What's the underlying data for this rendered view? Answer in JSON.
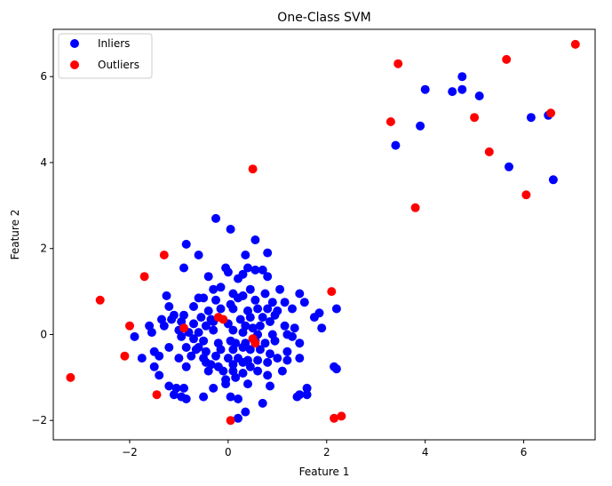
{
  "chart_data": {
    "type": "scatter",
    "title": "One-Class SVM",
    "xlabel": "Feature 1",
    "ylabel": "Feature 2",
    "xlim": [
      -3.55,
      7.45
    ],
    "ylim": [
      -2.45,
      7.1
    ],
    "xticks": [
      -2,
      0,
      2,
      4,
      6
    ],
    "yticks": [
      -2,
      0,
      2,
      4,
      6
    ],
    "xtick_labels": [
      "−2",
      "0",
      "2",
      "4",
      "6"
    ],
    "ytick_labels": [
      "−2",
      "0",
      "2",
      "4",
      "6"
    ],
    "grid": false,
    "legend_position": "top-left",
    "series": [
      {
        "name": "Inliers",
        "color": "#0000ff",
        "points": [
          [
            -0.25,
            2.7
          ],
          [
            0.05,
            2.45
          ],
          [
            0.55,
            2.2
          ],
          [
            -0.85,
            2.1
          ],
          [
            -0.6,
            1.85
          ],
          [
            0.35,
            1.85
          ],
          [
            0.8,
            1.9
          ],
          [
            -0.9,
            1.55
          ],
          [
            0.4,
            1.55
          ],
          [
            0.55,
            1.5
          ],
          [
            0.7,
            1.5
          ],
          [
            -0.05,
            1.55
          ],
          [
            0,
            1.45
          ],
          [
            0.3,
            1.4
          ],
          [
            -0.4,
            1.35
          ],
          [
            0.8,
            1.35
          ],
          [
            0.2,
            1.3
          ],
          [
            -0.3,
            1.05
          ],
          [
            -0.15,
            1.1
          ],
          [
            0.1,
            0.95
          ],
          [
            0.3,
            0.9
          ],
          [
            0.45,
            1.05
          ],
          [
            0.75,
            0.95
          ],
          [
            1.05,
            1.05
          ],
          [
            1.45,
            0.95
          ],
          [
            -1.25,
            0.9
          ],
          [
            -0.6,
            0.85
          ],
          [
            -0.5,
            0.85
          ],
          [
            -0.25,
            0.8
          ],
          [
            0.05,
            0.7
          ],
          [
            0.2,
            0.85
          ],
          [
            0.55,
            0.8
          ],
          [
            0.9,
            0.75
          ],
          [
            1.15,
            0.75
          ],
          [
            1.55,
            0.75
          ],
          [
            -1.2,
            0.65
          ],
          [
            -0.7,
            0.65
          ],
          [
            -0.4,
            0.55
          ],
          [
            -0.15,
            0.6
          ],
          [
            0.1,
            0.6
          ],
          [
            0.4,
            0.55
          ],
          [
            0.6,
            0.6
          ],
          [
            0.8,
            0.6
          ],
          [
            1.0,
            0.55
          ],
          [
            1.3,
            0.6
          ],
          [
            -1.1,
            0.45
          ],
          [
            -0.9,
            0.45
          ],
          [
            -0.55,
            0.4
          ],
          [
            -0.35,
            0.35
          ],
          [
            0.25,
            0.35
          ],
          [
            0.45,
            0.4
          ],
          [
            0.7,
            0.4
          ],
          [
            0.95,
            0.45
          ],
          [
            1.75,
            0.4
          ],
          [
            1.85,
            0.5
          ],
          [
            2.2,
            0.6
          ],
          [
            -1.35,
            0.35
          ],
          [
            -1.15,
            0.35
          ],
          [
            -0.95,
            0.3
          ],
          [
            -0.7,
            0.25
          ],
          [
            -0.45,
            0.2
          ],
          [
            0.0,
            0.25
          ],
          [
            0.35,
            0.2
          ],
          [
            0.65,
            0.2
          ],
          [
            0.85,
            0.3
          ],
          [
            1.15,
            0.2
          ],
          [
            1.35,
            0.15
          ],
          [
            1.9,
            0.15
          ],
          [
            -1.6,
            0.2
          ],
          [
            -1.55,
            0.05
          ],
          [
            -1.3,
            0.2
          ],
          [
            -1.0,
            0.1
          ],
          [
            -0.8,
            0.05
          ],
          [
            -0.6,
            0.05
          ],
          [
            -0.3,
            0.1
          ],
          [
            0.1,
            0.1
          ],
          [
            0.3,
            0.05
          ],
          [
            0.6,
            0.0
          ],
          [
            0.9,
            0.0
          ],
          [
            1.2,
            0.0
          ],
          [
            1.3,
            -0.05
          ],
          [
            -1.9,
            -0.05
          ],
          [
            -0.95,
            -0.05
          ],
          [
            -0.7,
            -0.1
          ],
          [
            -0.5,
            -0.15
          ],
          [
            -0.2,
            -0.2
          ],
          [
            0.05,
            -0.15
          ],
          [
            0.35,
            -0.2
          ],
          [
            0.55,
            -0.15
          ],
          [
            0.75,
            -0.2
          ],
          [
            0.95,
            -0.15
          ],
          [
            1.45,
            -0.2
          ],
          [
            -1.5,
            -0.4
          ],
          [
            -1.2,
            -0.3
          ],
          [
            -0.85,
            -0.3
          ],
          [
            -0.65,
            -0.35
          ],
          [
            -0.45,
            -0.4
          ],
          [
            -0.15,
            -0.35
          ],
          [
            0.1,
            -0.35
          ],
          [
            0.3,
            -0.3
          ],
          [
            0.45,
            -0.35
          ],
          [
            0.65,
            -0.35
          ],
          [
            0.85,
            -0.45
          ],
          [
            1.2,
            -0.4
          ],
          [
            -1.4,
            -0.5
          ],
          [
            -1.75,
            -0.55
          ],
          [
            -1.0,
            -0.55
          ],
          [
            -0.75,
            -0.5
          ],
          [
            -0.5,
            -0.55
          ],
          [
            -0.25,
            -0.5
          ],
          [
            0.0,
            -0.55
          ],
          [
            0.2,
            -0.55
          ],
          [
            0.4,
            -0.6
          ],
          [
            0.6,
            -0.6
          ],
          [
            1.0,
            -0.55
          ],
          [
            1.45,
            -0.55
          ],
          [
            -1.5,
            -0.75
          ],
          [
            -0.85,
            -0.75
          ],
          [
            -0.45,
            -0.65
          ],
          [
            -0.35,
            -0.7
          ],
          [
            -0.2,
            -0.75
          ],
          [
            0.1,
            -0.7
          ],
          [
            0.3,
            -0.65
          ],
          [
            0.45,
            -0.75
          ],
          [
            0.8,
            -0.65
          ],
          [
            1.2,
            -0.6
          ],
          [
            2.15,
            -0.75
          ],
          [
            2.2,
            -0.8
          ],
          [
            -1.4,
            -0.95
          ],
          [
            -0.4,
            -0.85
          ],
          [
            -0.1,
            -0.85
          ],
          [
            0.1,
            -0.85
          ],
          [
            0.3,
            -0.9
          ],
          [
            0.6,
            -0.85
          ],
          [
            0.8,
            -0.95
          ],
          [
            1.1,
            -0.85
          ],
          [
            -0.05,
            -1.05
          ],
          [
            0.15,
            -1.0
          ],
          [
            -1.2,
            -1.2
          ],
          [
            -1.05,
            -1.25
          ],
          [
            -0.9,
            -1.25
          ],
          [
            0.4,
            -1.15
          ],
          [
            -0.05,
            -1.15
          ],
          [
            0.85,
            -1.2
          ],
          [
            1.6,
            -1.25
          ],
          [
            -1.1,
            -1.4
          ],
          [
            -0.95,
            -1.45
          ],
          [
            -0.5,
            -1.45
          ],
          [
            -0.85,
            -1.5
          ],
          [
            -0.3,
            -1.25
          ],
          [
            0.05,
            -1.45
          ],
          [
            1.45,
            -1.4
          ],
          [
            1.6,
            -1.4
          ],
          [
            0.2,
            -1.5
          ],
          [
            0.7,
            -1.6
          ],
          [
            0.35,
            -1.8
          ],
          [
            0.2,
            -1.95
          ],
          [
            1.4,
            -1.45
          ],
          [
            -0.6,
            -0.3
          ],
          [
            0.5,
            0.15
          ],
          [
            -0.3,
            0.3
          ],
          [
            0.15,
            -0.2
          ],
          [
            3.4,
            4.4
          ],
          [
            3.9,
            4.85
          ],
          [
            4.0,
            5.7
          ],
          [
            4.55,
            5.65
          ],
          [
            4.75,
            5.7
          ],
          [
            4.75,
            6.0
          ],
          [
            5.1,
            5.55
          ],
          [
            5.7,
            3.9
          ],
          [
            6.15,
            5.05
          ],
          [
            6.5,
            5.1
          ],
          [
            6.6,
            3.6
          ]
        ]
      },
      {
        "name": "Outliers",
        "color": "#ff0000",
        "points": [
          [
            -3.2,
            -1.0
          ],
          [
            -2.6,
            0.8
          ],
          [
            -2.0,
            0.2
          ],
          [
            -2.1,
            -0.5
          ],
          [
            -1.7,
            1.35
          ],
          [
            -1.3,
            1.85
          ],
          [
            -0.9,
            0.15
          ],
          [
            -1.45,
            -1.4
          ],
          [
            -0.2,
            0.4
          ],
          [
            -0.1,
            0.35
          ],
          [
            0.5,
            -0.1
          ],
          [
            0.55,
            -0.2
          ],
          [
            0.5,
            3.85
          ],
          [
            2.1,
            1.0
          ],
          [
            0.05,
            -2.0
          ],
          [
            2.15,
            -1.95
          ],
          [
            2.3,
            -1.9
          ],
          [
            3.3,
            4.95
          ],
          [
            3.45,
            6.3
          ],
          [
            3.8,
            2.95
          ],
          [
            5.0,
            5.05
          ],
          [
            5.3,
            4.25
          ],
          [
            5.65,
            6.4
          ],
          [
            6.05,
            3.25
          ],
          [
            6.55,
            5.15
          ],
          [
            7.05,
            6.75
          ]
        ]
      }
    ]
  }
}
